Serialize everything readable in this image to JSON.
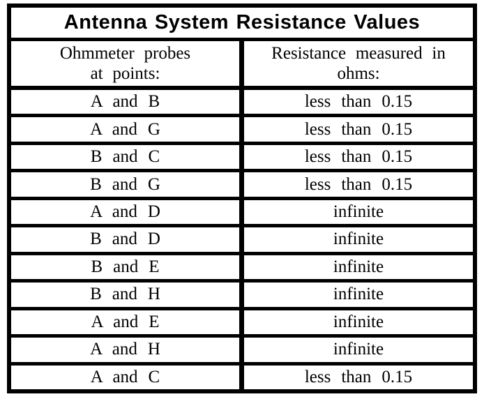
{
  "table": {
    "title": "Antenna System Resistance Values",
    "header": {
      "probes_col": [
        "Ohmmeter probes",
        "at points:"
      ],
      "resistance_col": [
        "Resistance measured in",
        "ohms:"
      ]
    },
    "rows": [
      {
        "probes": "A and B",
        "resistance": "less than 0.15"
      },
      {
        "probes": "A and G",
        "resistance": "less than 0.15"
      },
      {
        "probes": "B and C",
        "resistance": "less than 0.15"
      },
      {
        "probes": "B and G",
        "resistance": "less than 0.15"
      },
      {
        "probes": "A and D",
        "resistance": "infinite"
      },
      {
        "probes": "B and D",
        "resistance": "infinite"
      },
      {
        "probes": "B and E",
        "resistance": "infinite"
      },
      {
        "probes": "B and H",
        "resistance": "infinite"
      },
      {
        "probes": "A and E",
        "resistance": "infinite"
      },
      {
        "probes": "A and H",
        "resistance": "infinite"
      },
      {
        "probes": "A and C",
        "resistance": "less than 0.15"
      }
    ],
    "colors": {
      "ink": "#000000",
      "paper": "#ffffff"
    }
  }
}
